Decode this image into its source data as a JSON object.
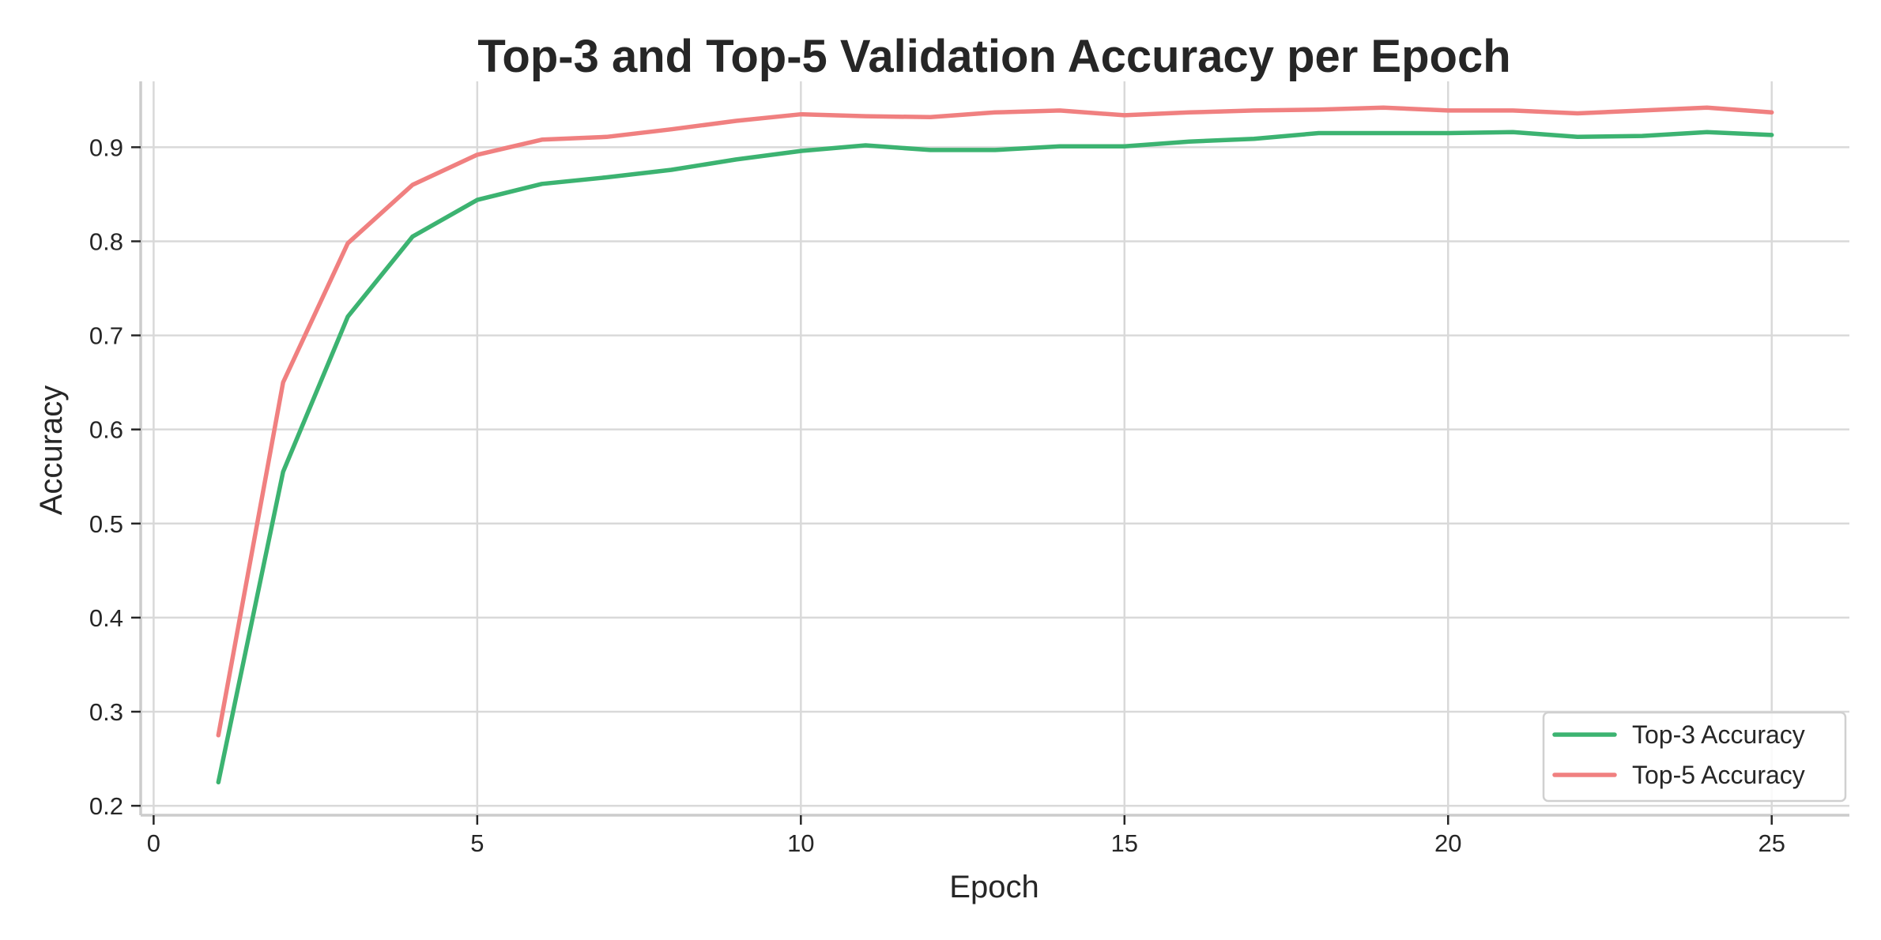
{
  "chart_data": {
    "type": "line",
    "title": "Top-3 and Top-5 Validation Accuracy per Epoch",
    "xlabel": "Epoch",
    "ylabel": "Accuracy",
    "xlim": [
      -0.2,
      26.2
    ],
    "ylim": [
      0.19,
      0.97
    ],
    "xticks": [
      0,
      5,
      10,
      15,
      20,
      25
    ],
    "yticks": [
      0.2,
      0.3,
      0.4,
      0.5,
      0.6,
      0.7,
      0.8,
      0.9
    ],
    "grid": true,
    "legend_position": "lower-right",
    "x": [
      1,
      2,
      3,
      4,
      5,
      6,
      7,
      8,
      9,
      10,
      11,
      12,
      13,
      14,
      15,
      16,
      17,
      18,
      19,
      20,
      21,
      22,
      23,
      24,
      25
    ],
    "series": [
      {
        "name": "Top-3 Accuracy",
        "color": "#3cb371",
        "values": [
          0.225,
          0.555,
          0.72,
          0.805,
          0.844,
          0.861,
          0.868,
          0.876,
          0.887,
          0.896,
          0.902,
          0.897,
          0.897,
          0.901,
          0.901,
          0.906,
          0.909,
          0.915,
          0.915,
          0.915,
          0.916,
          0.911,
          0.912,
          0.916,
          0.913
        ]
      },
      {
        "name": "Top-5 Accuracy",
        "color": "#f08080",
        "values": [
          0.275,
          0.65,
          0.798,
          0.86,
          0.892,
          0.908,
          0.911,
          0.919,
          0.928,
          0.935,
          0.933,
          0.932,
          0.937,
          0.939,
          0.934,
          0.937,
          0.939,
          0.94,
          0.942,
          0.939,
          0.939,
          0.936,
          0.939,
          0.942,
          0.937
        ]
      }
    ]
  },
  "colors": {
    "grid": "#d9d9d9",
    "spine": "#cccccc",
    "text": "#262626",
    "background": "#ffffff"
  }
}
